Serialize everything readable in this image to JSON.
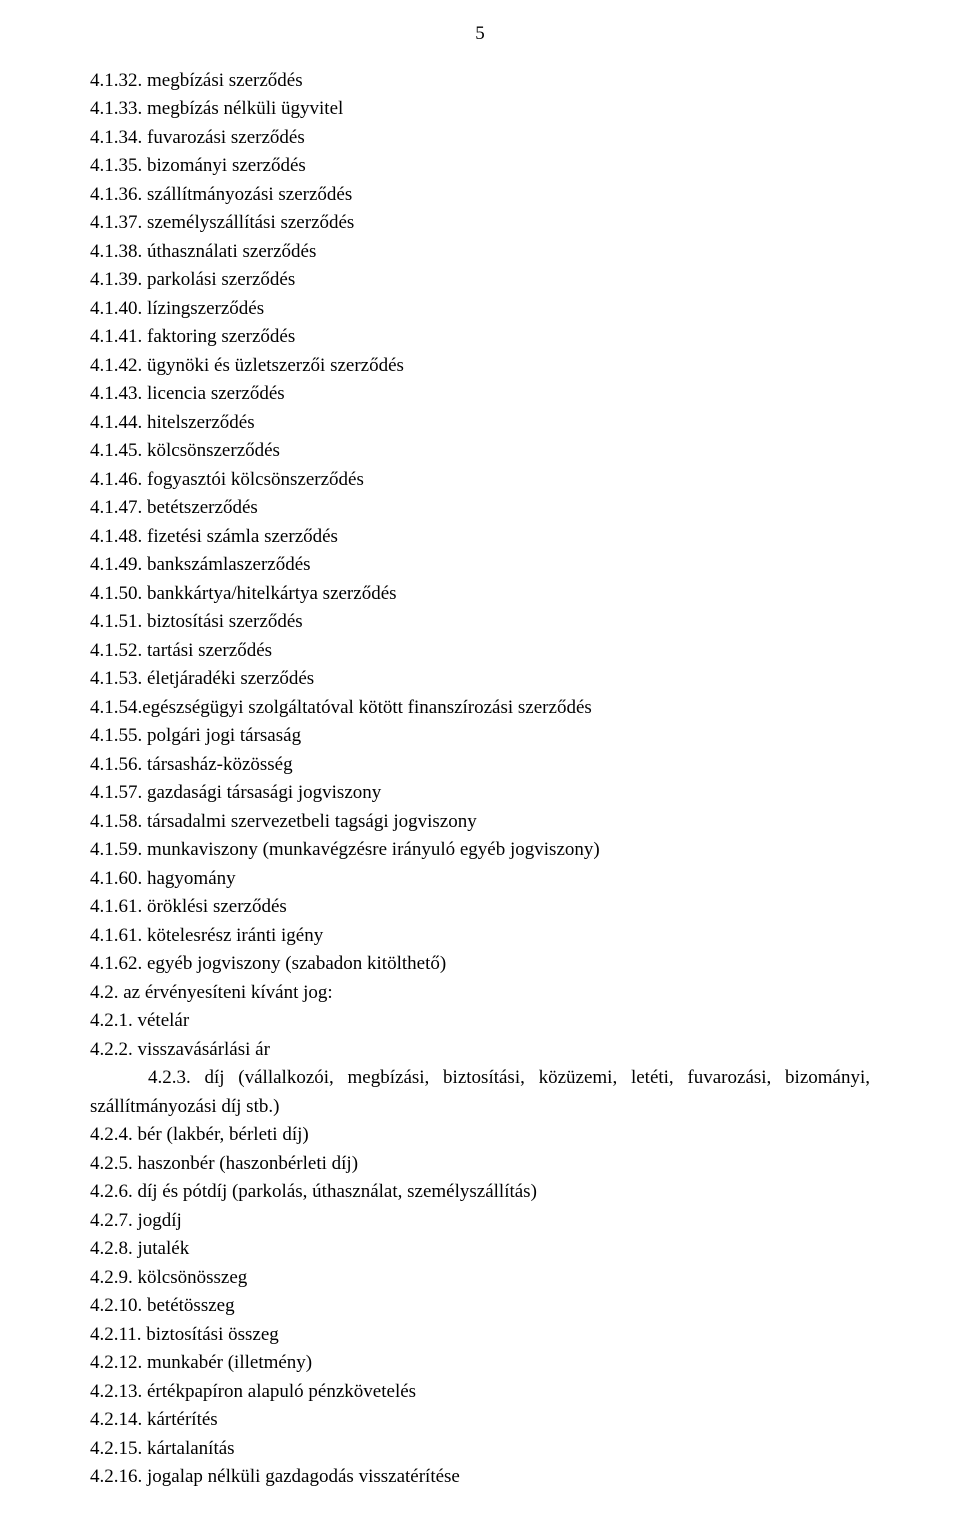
{
  "page_number": "5",
  "lines": [
    {
      "indent": 1,
      "text": "4.1.32. megbízási szerződés"
    },
    {
      "indent": 1,
      "text": "4.1.33. megbízás nélküli ügyvitel"
    },
    {
      "indent": 1,
      "text": "4.1.34. fuvarozási szerződés"
    },
    {
      "indent": 1,
      "text": "4.1.35. bizományi szerződés"
    },
    {
      "indent": 1,
      "text": "4.1.36. szállítmányozási szerződés"
    },
    {
      "indent": 1,
      "text": "4.1.37. személyszállítási szerződés"
    },
    {
      "indent": 1,
      "text": "4.1.38. úthasználati szerződés"
    },
    {
      "indent": 1,
      "text": "4.1.39. parkolási szerződés"
    },
    {
      "indent": 1,
      "text": "4.1.40. lízingszerződés"
    },
    {
      "indent": 1,
      "text": "4.1.41. faktoring szerződés"
    },
    {
      "indent": 1,
      "text": "4.1.42. ügynöki és üzletszerzői szerződés"
    },
    {
      "indent": 1,
      "text": "4.1.43. licencia szerződés"
    },
    {
      "indent": 1,
      "text": "4.1.44. hitelszerződés"
    },
    {
      "indent": 1,
      "text": "4.1.45. kölcsönszerződés"
    },
    {
      "indent": 1,
      "text": "4.1.46. fogyasztói kölcsönszerződés"
    },
    {
      "indent": 1,
      "text": "4.1.47. betétszerződés"
    },
    {
      "indent": 1,
      "text": "4.1.48. fizetési számla szerződés"
    },
    {
      "indent": 1,
      "text": "4.1.49. bankszámlaszerződés"
    },
    {
      "indent": 1,
      "text": "4.1.50. bankkártya/hitelkártya szerződés"
    },
    {
      "indent": 1,
      "text": "4.1.51. biztosítási szerződés"
    },
    {
      "indent": 1,
      "text": "4.1.52. tartási szerződés"
    },
    {
      "indent": 1,
      "text": "4.1.53. életjáradéki szerződés"
    },
    {
      "indent": 1,
      "text": "4.1.54.egészségügyi szolgáltatóval kötött finanszírozási szerződés"
    },
    {
      "indent": 1,
      "text": "4.1.55. polgári jogi társaság"
    },
    {
      "indent": 1,
      "text": "4.1.56. társasház-közösség"
    },
    {
      "indent": 1,
      "text": "4.1.57. gazdasági társasági jogviszony"
    },
    {
      "indent": 1,
      "text": "4.1.58. társadalmi szervezetbeli tagsági jogviszony"
    },
    {
      "indent": 1,
      "text": "4.1.59. munkaviszony (munkavégzésre irányuló egyéb jogviszony)"
    },
    {
      "indent": 1,
      "text": "4.1.60. hagyomány"
    },
    {
      "indent": 1,
      "text": "4.1.61. öröklési szerződés"
    },
    {
      "indent": 1,
      "text": "4.1.61. kötelesrész iránti igény"
    },
    {
      "indent": 1,
      "text": "4.1.62. egyéb jogviszony (szabadon kitölthető)"
    },
    {
      "indent": 0,
      "text": "4.2. az érvényesíteni kívánt jog:"
    },
    {
      "indent": 1,
      "text": "4.2.1. vételár"
    },
    {
      "indent": 1,
      "text": "4.2.2. visszavásárlási ár"
    },
    {
      "indent": "justified",
      "text": "4.2.3. díj (vállalkozói, megbízási, biztosítási, közüzemi, letéti, fuvarozási, bizományi, szállítmányozási díj stb.)"
    },
    {
      "indent": 1,
      "text": "4.2.4. bér (lakbér, bérleti díj)"
    },
    {
      "indent": 1,
      "text": "4.2.5. haszonbér (haszonbérleti díj)"
    },
    {
      "indent": 1,
      "text": "4.2.6. díj és pótdíj (parkolás, úthasználat, személyszállítás)"
    },
    {
      "indent": 1,
      "text": "4.2.7. jogdíj"
    },
    {
      "indent": 1,
      "text": "4.2.8. jutalék"
    },
    {
      "indent": 1,
      "text": "4.2.9. kölcsönösszeg"
    },
    {
      "indent": 1,
      "text": "4.2.10. betétösszeg"
    },
    {
      "indent": 1,
      "text": "4.2.11. biztosítási összeg"
    },
    {
      "indent": 1,
      "text": "4.2.12. munkabér (illetmény)"
    },
    {
      "indent": 1,
      "text": "4.2.13. értékpapíron alapuló pénzkövetelés"
    },
    {
      "indent": 1,
      "text": "4.2.14. kártérítés"
    },
    {
      "indent": 1,
      "text": "4.2.15. kártalanítás"
    },
    {
      "indent": 1,
      "text": "4.2.16. jogalap nélküli gazdagodás visszatérítése"
    }
  ]
}
